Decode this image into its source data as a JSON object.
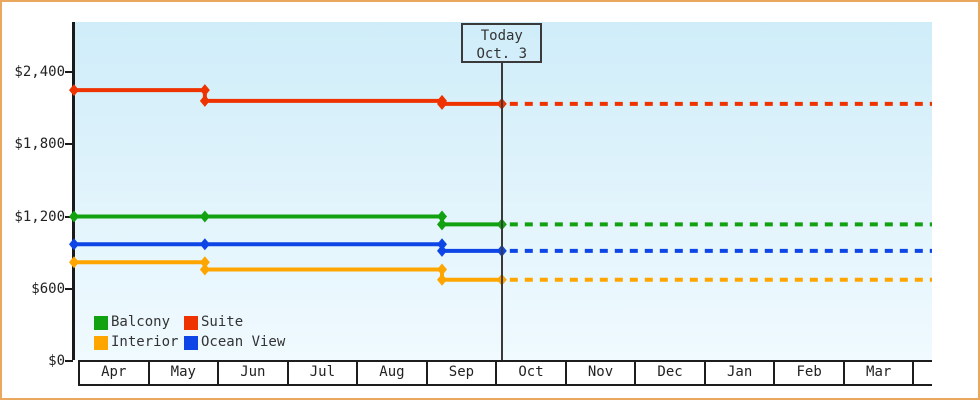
{
  "window": {
    "frame_color": "#eaa85f",
    "background": "#ffffff"
  },
  "chart_data": {
    "type": "line",
    "subtype": "step",
    "title": "",
    "xlabel": "",
    "ylabel": "",
    "grid": false,
    "y_axis": {
      "tick_labels": [
        "$0",
        "$600",
        "$1,200",
        "$1,800",
        "$2,400"
      ],
      "tick_values": [
        0,
        600,
        1200,
        1800,
        2400
      ],
      "ylim": [
        0,
        2810
      ]
    },
    "x_axis": {
      "months": [
        "Apr",
        "May",
        "Jun",
        "Jul",
        "Aug",
        "Sep",
        "Oct",
        "Nov",
        "Dec",
        "Jan",
        "Feb",
        "Mar"
      ]
    },
    "today_marker": {
      "line1": "Today",
      "line2": "Oct. 3",
      "month_offset": 6.08
    },
    "projection_style": "dotted",
    "series": [
      {
        "name": "Balcony",
        "color": "#11a111",
        "points": [
          {
            "month_offset": 0,
            "price": 1200
          },
          {
            "month_offset": 1.81,
            "price": 1200
          },
          {
            "month_offset": 5.22,
            "price": 1135
          },
          {
            "month_offset": 6.08,
            "price": 1135
          }
        ],
        "projected_price": 1135
      },
      {
        "name": "Suite",
        "color": "#ee3300",
        "points": [
          {
            "month_offset": 0,
            "price": 2250
          },
          {
            "month_offset": 1.81,
            "price": 2160
          },
          {
            "month_offset": 5.22,
            "price": 2135
          },
          {
            "month_offset": 6.08,
            "price": 2135
          }
        ],
        "projected_price": 2135
      },
      {
        "name": "Interior",
        "color": "#ffa500",
        "points": [
          {
            "month_offset": 0,
            "price": 820
          },
          {
            "month_offset": 1.81,
            "price": 760
          },
          {
            "month_offset": 5.22,
            "price": 675
          },
          {
            "month_offset": 6.08,
            "price": 675
          }
        ],
        "projected_price": 675
      },
      {
        "name": "Ocean View",
        "color": "#0d45e6",
        "points": [
          {
            "month_offset": 0,
            "price": 970
          },
          {
            "month_offset": 1.81,
            "price": 970
          },
          {
            "month_offset": 5.22,
            "price": 915
          },
          {
            "month_offset": 6.08,
            "price": 915
          }
        ],
        "projected_price": 915
      }
    ],
    "legend": {
      "position": "bottom-left",
      "rows": [
        [
          "Balcony",
          "Suite"
        ],
        [
          "Interior",
          "Ocean View"
        ]
      ]
    }
  }
}
